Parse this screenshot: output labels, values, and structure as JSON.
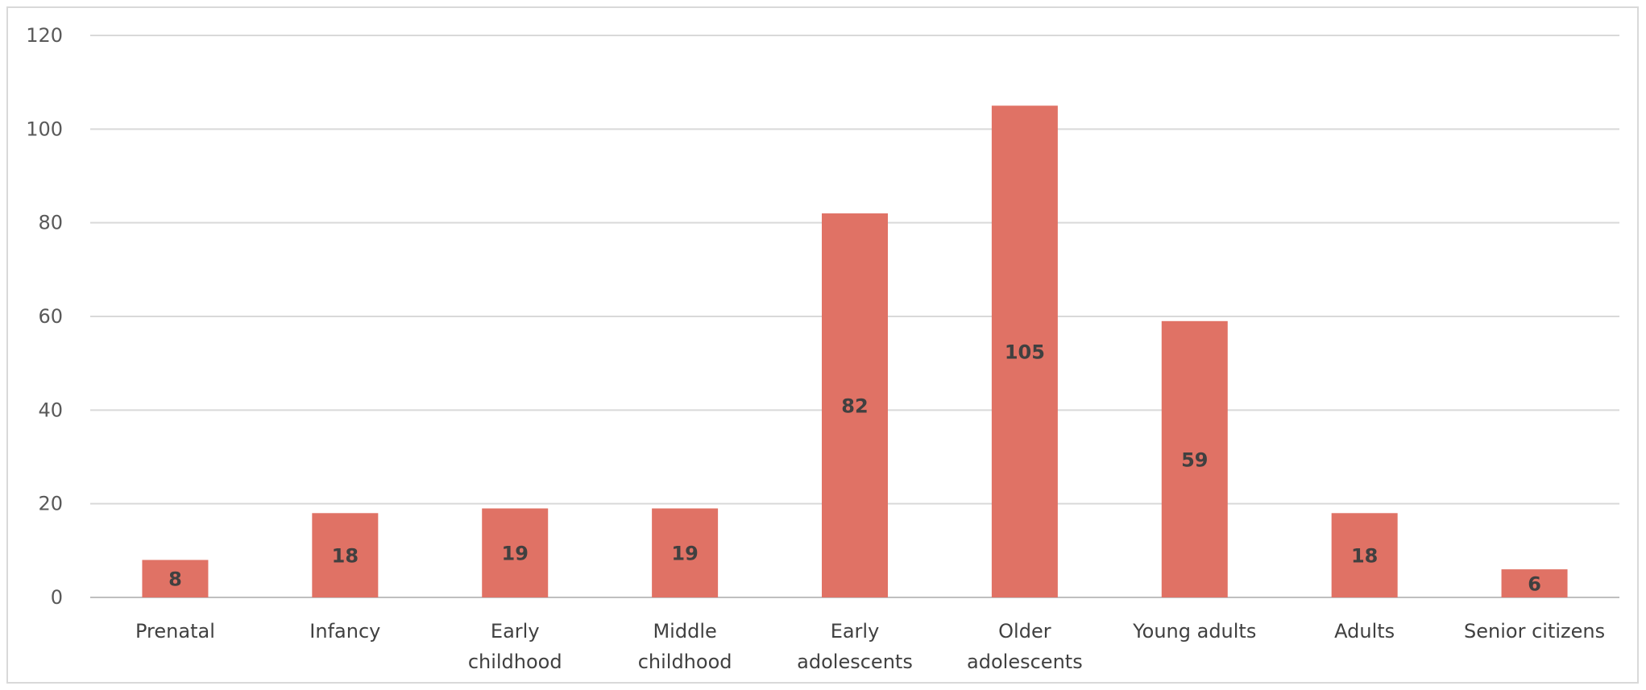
{
  "chart_data": {
    "type": "bar",
    "categories": [
      [
        "Prenatal"
      ],
      [
        "Infancy"
      ],
      [
        "Early",
        "childhood"
      ],
      [
        "Middle",
        "childhood"
      ],
      [
        "Early",
        "adolescents"
      ],
      [
        "Older",
        "adolescents"
      ],
      [
        "Young adults"
      ],
      [
        "Adults"
      ],
      [
        "Senior citizens"
      ]
    ],
    "values": [
      8,
      18,
      19,
      19,
      82,
      105,
      59,
      18,
      6
    ],
    "data_labels": [
      "8",
      "18",
      "19",
      "19",
      "82",
      "105",
      "59",
      "18",
      "6"
    ],
    "title": "",
    "xlabel": "",
    "ylabel": "",
    "ylim": [
      0,
      120
    ],
    "yticks": [
      0,
      20,
      40,
      60,
      80,
      100,
      120
    ],
    "grid": true,
    "legend": "none",
    "colors": {
      "bar": "#e07265",
      "grid": "#d9d9d9",
      "axis": "#bfbfbf",
      "tick_text": "#595959",
      "label_text": "#404040"
    }
  }
}
